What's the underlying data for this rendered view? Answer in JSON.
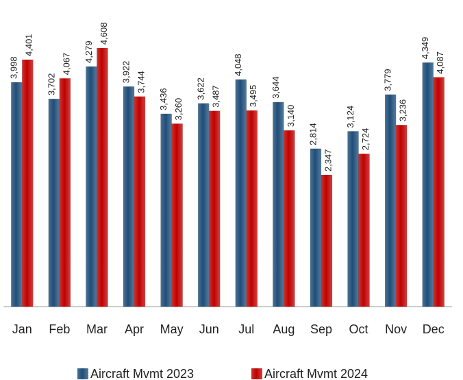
{
  "chart_data": {
    "type": "bar",
    "categories": [
      "Jan",
      "Feb",
      "Mar",
      "Apr",
      "May",
      "Jun",
      "Jul",
      "Aug",
      "Sep",
      "Oct",
      "Nov",
      "Dec"
    ],
    "series": [
      {
        "name": "Aircraft Mvmt 2023",
        "color": "#1f4e79",
        "values": [
          3998,
          3702,
          4279,
          3922,
          3436,
          3622,
          4048,
          3644,
          2814,
          3124,
          3779,
          4349
        ],
        "value_labels": [
          "3,998",
          "3,702",
          "4,279",
          "3,922",
          "3,436",
          "3,622",
          "4,048",
          "3,644",
          "2,814",
          "3,124",
          "3,779",
          "4,349"
        ]
      },
      {
        "name": "Aircraft Mvmt 2024",
        "color": "#c00000",
        "values": [
          4401,
          4067,
          4608,
          3744,
          3260,
          3487,
          3495,
          3140,
          2347,
          2724,
          3236,
          4087
        ],
        "value_labels": [
          "4,401",
          "4,067",
          "4,608",
          "3,744",
          "3,260",
          "3,487",
          "3,495",
          "3,140",
          "2,347",
          "2,724",
          "3,236",
          "4,087"
        ]
      }
    ],
    "ylim": [
      0,
      5000
    ],
    "legend": "bottom"
  }
}
